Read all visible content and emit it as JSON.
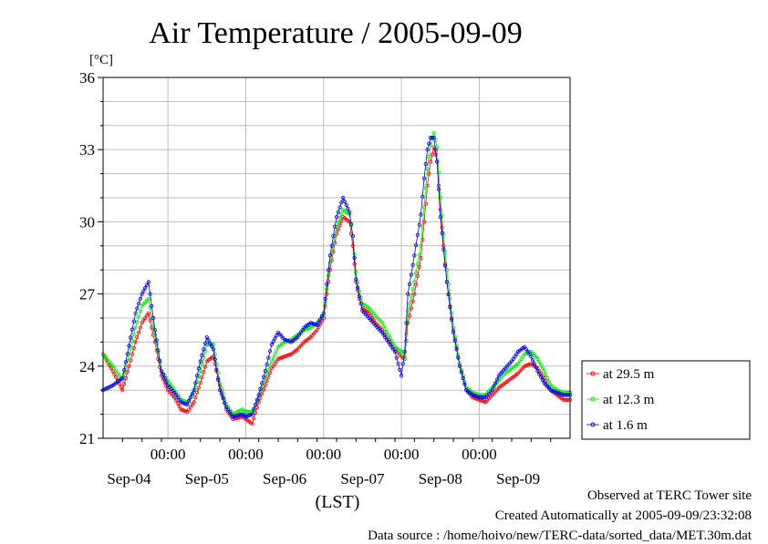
{
  "chart_data": {
    "type": "line",
    "title": "Air Temperature / 2005-09-09",
    "ylabel": "[°C]",
    "xlabel": "(LST)",
    "ylim": [
      21,
      36
    ],
    "yticks": [
      "21",
      "24",
      "27",
      "30",
      "33",
      "36"
    ],
    "xlim": [
      0,
      144
    ],
    "x_midnight_label": "00:00",
    "x_midnights": [
      20,
      44,
      68,
      92,
      116
    ],
    "x_day_labels": [
      {
        "label": "Sep-04",
        "x": 8
      },
      {
        "label": "Sep-05",
        "x": 32
      },
      {
        "label": "Sep-06",
        "x": 56
      },
      {
        "label": "Sep-07",
        "x": 80
      },
      {
        "label": "Sep-08",
        "x": 104
      },
      {
        "label": "Sep-09",
        "x": 128
      }
    ],
    "grid": true,
    "legend_position": "right",
    "x_unit": "hours since start of Sep-04 (LST)",
    "series": [
      {
        "name": "at 29.5 m",
        "color": "#ff0000",
        "x": [
          0,
          3,
          6,
          10,
          12,
          14,
          16,
          18,
          20,
          22,
          24,
          26,
          28,
          30,
          32,
          34,
          36,
          38,
          40,
          43,
          44,
          46,
          48,
          50,
          52,
          54,
          56,
          58,
          60,
          62,
          64,
          66,
          68,
          70,
          72,
          74,
          76,
          77,
          78,
          79,
          80,
          82,
          84,
          86,
          88,
          90,
          92,
          93,
          94,
          96,
          98,
          99,
          100,
          101,
          102,
          103,
          104,
          106,
          108,
          110,
          112,
          114,
          116,
          118,
          120,
          122,
          124,
          126,
          128,
          130,
          132,
          134,
          136,
          138,
          140,
          142,
          144
        ],
        "values": [
          24.5,
          23.8,
          23.0,
          25.0,
          25.8,
          26.2,
          25.0,
          23.6,
          23.0,
          22.7,
          22.2,
          22.1,
          22.5,
          23.3,
          24.2,
          24.4,
          23.2,
          22.2,
          21.8,
          21.9,
          21.8,
          21.6,
          22.5,
          23.2,
          23.9,
          24.3,
          24.4,
          24.5,
          24.7,
          25.0,
          25.2,
          25.5,
          26.0,
          28.0,
          29.5,
          30.2,
          30.0,
          29.0,
          27.5,
          26.8,
          26.4,
          26.2,
          25.8,
          25.5,
          25.1,
          24.7,
          24.4,
          24.3,
          25.8,
          27.0,
          28.5,
          30.0,
          31.5,
          32.5,
          33.1,
          32.5,
          30.5,
          27.5,
          25.5,
          24.0,
          23.0,
          22.7,
          22.6,
          22.5,
          22.8,
          23.1,
          23.3,
          23.5,
          23.7,
          24.0,
          24.1,
          23.9,
          23.5,
          23.0,
          22.8,
          22.6,
          22.6
        ]
      },
      {
        "name": "at 12.3 m",
        "color": "#00ee00",
        "x": [
          0,
          3,
          6,
          10,
          12,
          14,
          16,
          18,
          20,
          22,
          24,
          26,
          28,
          30,
          32,
          34,
          36,
          38,
          40,
          43,
          44,
          46,
          48,
          50,
          52,
          54,
          56,
          58,
          60,
          62,
          64,
          66,
          68,
          70,
          72,
          74,
          76,
          77,
          78,
          79,
          80,
          82,
          84,
          86,
          88,
          90,
          92,
          93,
          94,
          96,
          98,
          99,
          100,
          101,
          102,
          103,
          104,
          106,
          108,
          110,
          112,
          114,
          116,
          118,
          120,
          122,
          124,
          126,
          128,
          130,
          132,
          134,
          136,
          138,
          140,
          142,
          144
        ],
        "values": [
          24.5,
          24.0,
          23.4,
          25.6,
          26.5,
          26.8,
          25.3,
          23.8,
          23.4,
          23.0,
          22.6,
          22.5,
          22.9,
          23.8,
          24.9,
          24.9,
          23.3,
          22.4,
          22.0,
          22.2,
          22.1,
          22.1,
          22.7,
          23.5,
          24.2,
          24.8,
          25.0,
          25.1,
          25.3,
          25.5,
          25.6,
          25.8,
          26.1,
          28.3,
          29.8,
          30.5,
          30.3,
          29.4,
          27.9,
          27.1,
          26.6,
          26.4,
          26.1,
          25.8,
          25.3,
          24.8,
          24.6,
          24.4,
          26.3,
          27.5,
          29.0,
          30.6,
          32.2,
          33.2,
          33.7,
          33.1,
          31.0,
          28.0,
          25.6,
          24.1,
          23.1,
          22.9,
          22.8,
          22.8,
          23.1,
          23.4,
          23.7,
          23.9,
          24.1,
          24.5,
          24.6,
          24.3,
          23.8,
          23.2,
          23.0,
          22.9,
          22.9
        ]
      },
      {
        "name": "at 1.6 m",
        "color": "#0000ff",
        "x": [
          0,
          3,
          6,
          10,
          12,
          14,
          16,
          18,
          20,
          22,
          24,
          26,
          28,
          30,
          32,
          34,
          36,
          38,
          40,
          43,
          44,
          46,
          48,
          50,
          52,
          54,
          56,
          58,
          60,
          62,
          64,
          66,
          68,
          70,
          72,
          74,
          76,
          77,
          78,
          79,
          80,
          82,
          84,
          86,
          88,
          90,
          92,
          93,
          94,
          96,
          98,
          99,
          100,
          101,
          102,
          103,
          104,
          106,
          108,
          110,
          112,
          114,
          116,
          118,
          120,
          122,
          124,
          126,
          128,
          130,
          132,
          134,
          136,
          138,
          140,
          142,
          144
        ],
        "values": [
          23.0,
          23.2,
          23.5,
          26.2,
          27.0,
          27.5,
          25.5,
          23.8,
          23.2,
          22.9,
          22.5,
          22.4,
          23.0,
          24.2,
          25.2,
          24.7,
          23.0,
          22.3,
          21.9,
          22.0,
          21.9,
          22.0,
          22.8,
          23.8,
          24.9,
          25.4,
          25.1,
          25.0,
          25.2,
          25.6,
          25.8,
          25.7,
          26.2,
          28.6,
          30.2,
          31.0,
          30.4,
          29.4,
          27.6,
          26.9,
          26.3,
          26.0,
          25.7,
          25.4,
          25.0,
          24.6,
          23.6,
          24.6,
          27.0,
          28.6,
          30.3,
          31.8,
          33.0,
          33.5,
          33.5,
          32.5,
          30.2,
          27.5,
          25.4,
          24.0,
          23.0,
          22.8,
          22.7,
          22.7,
          23.0,
          23.6,
          23.9,
          24.2,
          24.6,
          24.8,
          24.4,
          23.8,
          23.3,
          23.0,
          22.9,
          22.8,
          22.8
        ]
      }
    ]
  },
  "footer": {
    "line1": "Observed at TERC Tower site",
    "line2": "Created Automatically at 2005-09-09/23:32:08",
    "line3": "Data source : /home/hoivo/new/TERC-data/sorted_data/MET.30m.dat"
  }
}
